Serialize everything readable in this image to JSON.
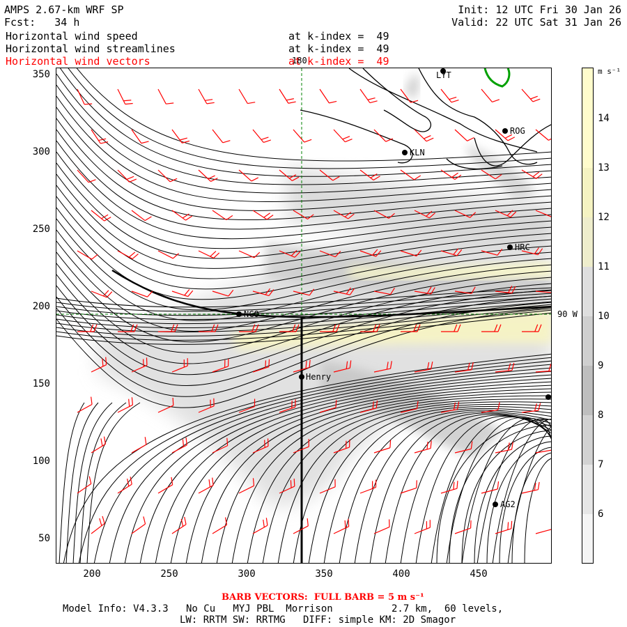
{
  "header": {
    "model": "AMPS 2.67-km WRF SP",
    "fcst": "Fcst:   34 h",
    "init": "Init: 12 UTC Fri 30 Jan 26",
    "valid": "Valid: 22 UTC Sat 31 Jan 26",
    "fields": [
      {
        "name": "Horizontal wind speed",
        "level": "at k-index =  49",
        "color": "#000000"
      },
      {
        "name": "Horizontal wind streamlines",
        "level": "at k-index =  49",
        "color": "#000000"
      },
      {
        "name": "Horizontal wind vectors",
        "level": "at k-index =  49",
        "color": "#ff0000"
      }
    ]
  },
  "axes": {
    "x_ticks": [
      "200",
      "250",
      "300",
      "350",
      "400",
      "450"
    ],
    "y_ticks": [
      "350",
      "300",
      "250",
      "200",
      "150",
      "100",
      "50"
    ],
    "meridian_label": "180",
    "latitude_label": "90 W"
  },
  "colorbar": {
    "unit": "m s⁻¹",
    "ticks": [
      "14",
      "13",
      "12",
      "11",
      "10",
      "9",
      "8",
      "7",
      "6"
    ]
  },
  "stations": [
    {
      "id": "LYT",
      "label": "LYT"
    },
    {
      "id": "ROG",
      "label": "ROG"
    },
    {
      "id": "KLN",
      "label": "KLN"
    },
    {
      "id": "HRC",
      "label": "HRC"
    },
    {
      "id": "NCO",
      "label": "NCO"
    },
    {
      "id": "Henry",
      "label": "Henry"
    },
    {
      "id": "AG2",
      "label": "AG2"
    },
    {
      "id": "E",
      "label": ""
    }
  ],
  "footer": {
    "barb_note": "BARB VECTORS:  FULL BARB = 5 m s⁻¹",
    "model_info": "Model Info: V4.3.3   No Cu   MYJ PBL  Morrison          2.7 km,  60 levels,",
    "physics": "LW: RRTM SW: RRTMG   DIFF: simple KM: 2D Smagor"
  },
  "colors": {
    "barb": "#ff0000",
    "streamline": "#000000",
    "coast": "#000000",
    "green_contour": "#00a000",
    "colorbar_high": "#fffccc",
    "colorbar_low": "#f2f2f2"
  }
}
